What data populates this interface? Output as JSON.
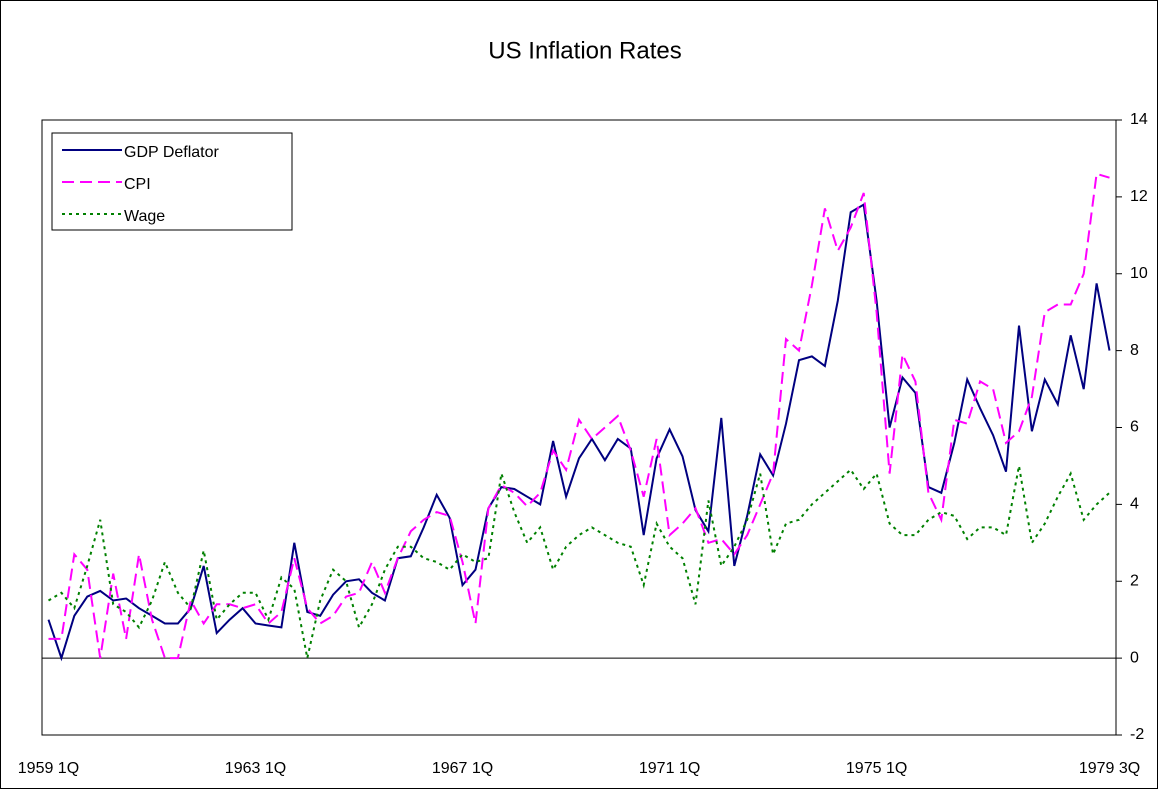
{
  "chart_data": {
    "type": "line",
    "title": "US Inflation Rates",
    "categories": [
      "1959 1Q",
      null,
      null,
      null,
      null,
      null,
      null,
      null,
      null,
      null,
      null,
      null,
      null,
      null,
      null,
      null,
      "1963 1Q",
      null,
      null,
      null,
      null,
      null,
      null,
      null,
      null,
      null,
      null,
      null,
      null,
      null,
      null,
      null,
      "1967 1Q",
      null,
      null,
      null,
      null,
      null,
      null,
      null,
      null,
      null,
      null,
      null,
      null,
      null,
      null,
      null,
      "1971 1Q",
      null,
      null,
      null,
      null,
      null,
      null,
      null,
      null,
      null,
      null,
      null,
      null,
      null,
      null,
      null,
      "1975 1Q",
      null,
      null,
      null,
      null,
      null,
      null,
      null,
      null,
      null,
      null,
      null,
      null,
      null,
      null,
      null,
      null,
      null,
      "1979 3Q"
    ],
    "series": [
      {
        "name": "GDP Deflator",
        "color": "#000080",
        "style": "solid",
        "values": [
          1.0,
          0.0,
          1.1,
          1.6,
          1.75,
          1.5,
          1.55,
          1.3,
          1.1,
          0.9,
          0.9,
          1.3,
          2.4,
          0.65,
          1.0,
          1.3,
          0.9,
          0.85,
          0.8,
          3.0,
          1.2,
          1.1,
          1.65,
          2.0,
          2.05,
          1.7,
          1.5,
          2.6,
          2.65,
          3.4,
          4.25,
          3.65,
          1.9,
          2.3,
          3.9,
          4.45,
          4.4,
          4.2,
          4.0,
          5.65,
          4.2,
          5.2,
          5.7,
          5.15,
          5.7,
          5.45,
          3.2,
          5.2,
          5.95,
          5.25,
          3.85,
          3.3,
          6.25,
          2.4,
          3.7,
          5.3,
          4.75,
          6.1,
          7.75,
          7.85,
          7.6,
          9.3,
          11.6,
          11.8,
          9.3,
          6.0,
          7.3,
          6.9,
          4.45,
          4.3,
          5.6,
          7.25,
          6.5,
          5.8,
          4.85,
          8.65,
          5.9,
          7.25,
          6.6,
          8.4,
          7.0,
          9.75,
          8.0
        ]
      },
      {
        "name": "CPI",
        "color": "#ff00ff",
        "style": "dashed",
        "values": [
          0.5,
          0.5,
          2.7,
          2.3,
          0.0,
          2.2,
          0.5,
          2.7,
          1.0,
          0.0,
          0.0,
          1.5,
          0.9,
          1.4,
          1.4,
          1.3,
          1.4,
          0.9,
          1.2,
          2.6,
          1.3,
          0.9,
          1.1,
          1.6,
          1.7,
          2.5,
          1.7,
          2.6,
          3.3,
          3.6,
          3.8,
          3.7,
          2.5,
          0.9,
          3.9,
          4.5,
          4.3,
          3.95,
          4.3,
          5.4,
          4.9,
          6.2,
          5.7,
          6.0,
          6.3,
          5.4,
          4.2,
          5.7,
          3.2,
          3.5,
          3.9,
          3.0,
          3.1,
          2.7,
          3.2,
          4.0,
          4.8,
          8.3,
          8.0,
          9.7,
          11.7,
          10.6,
          11.2,
          12.1,
          9.0,
          4.8,
          7.9,
          7.2,
          4.3,
          3.6,
          6.2,
          6.1,
          7.2,
          7.0,
          5.6,
          5.9,
          6.8,
          9.0,
          9.2,
          9.2,
          10.0,
          12.6,
          12.5
        ]
      },
      {
        "name": "Wage",
        "color": "#008000",
        "style": "dotted",
        "values": [
          1.5,
          1.7,
          1.3,
          2.4,
          3.6,
          1.4,
          1.2,
          0.8,
          1.5,
          2.5,
          1.7,
          1.3,
          2.8,
          1.0,
          1.4,
          1.7,
          1.7,
          1.0,
          2.1,
          1.8,
          0.0,
          1.5,
          2.3,
          2.0,
          0.8,
          1.4,
          2.3,
          2.9,
          2.9,
          2.6,
          2.5,
          2.3,
          2.7,
          2.5,
          2.6,
          4.8,
          3.8,
          3.0,
          3.4,
          2.3,
          2.9,
          3.2,
          3.4,
          3.2,
          3.0,
          2.9,
          1.9,
          3.5,
          2.9,
          2.6,
          1.4,
          4.1,
          2.4,
          2.9,
          3.6,
          4.8,
          2.7,
          3.5,
          3.6,
          4.0,
          4.3,
          4.6,
          4.9,
          4.4,
          4.8,
          3.5,
          3.2,
          3.2,
          3.6,
          3.8,
          3.7,
          3.1,
          3.4,
          3.4,
          3.2,
          5.0,
          3.0,
          3.5,
          4.2,
          4.8,
          3.6,
          4.0,
          4.3
        ]
      }
    ],
    "ylim": [
      -2,
      14
    ],
    "yticks": [
      -2,
      0,
      2,
      4,
      6,
      8,
      10,
      12,
      14
    ],
    "yaxis_side": "right",
    "zero_line": true,
    "legend": "top-left"
  }
}
